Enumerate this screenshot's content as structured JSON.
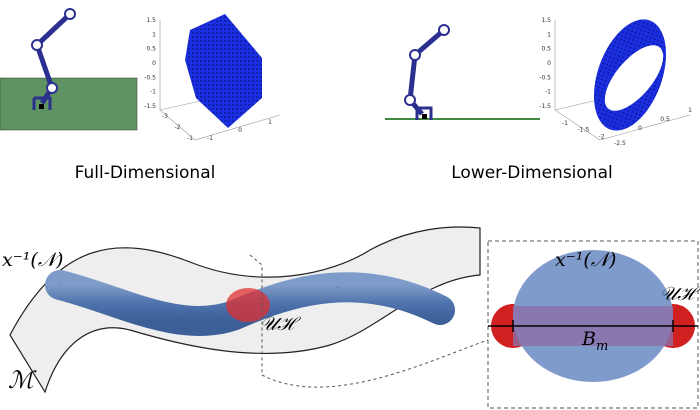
{
  "panels": {
    "full": {
      "caption": "Full-Dimensional",
      "zticks": [
        "1.5",
        "1",
        "0.5",
        "0",
        "-0.5",
        "-1",
        "-1.5"
      ],
      "xticks": [
        "-3",
        "-2",
        "-1"
      ],
      "yticks": [
        "-1",
        "0",
        "1"
      ]
    },
    "lower": {
      "caption": "Lower-Dimensional",
      "zticks": [
        "1.5",
        "1",
        "0.5",
        "0",
        "-0.5",
        "-1",
        "-1.5"
      ],
      "xticks": [
        "-1",
        "-1.5",
        "-2",
        "-2.5"
      ],
      "yticks": [
        "0",
        "0.5",
        "1"
      ]
    }
  },
  "bottom": {
    "preimage_label": "x⁻¹(𝒩)",
    "uh_label": "𝒰ℋ",
    "manifold_label": "ℳ",
    "inset": {
      "preimage_label": "x⁻¹(𝒩)",
      "uh_label": "𝒰ℋ",
      "ball_label": {
        "base": "B",
        "sub": "m"
      }
    }
  }
}
